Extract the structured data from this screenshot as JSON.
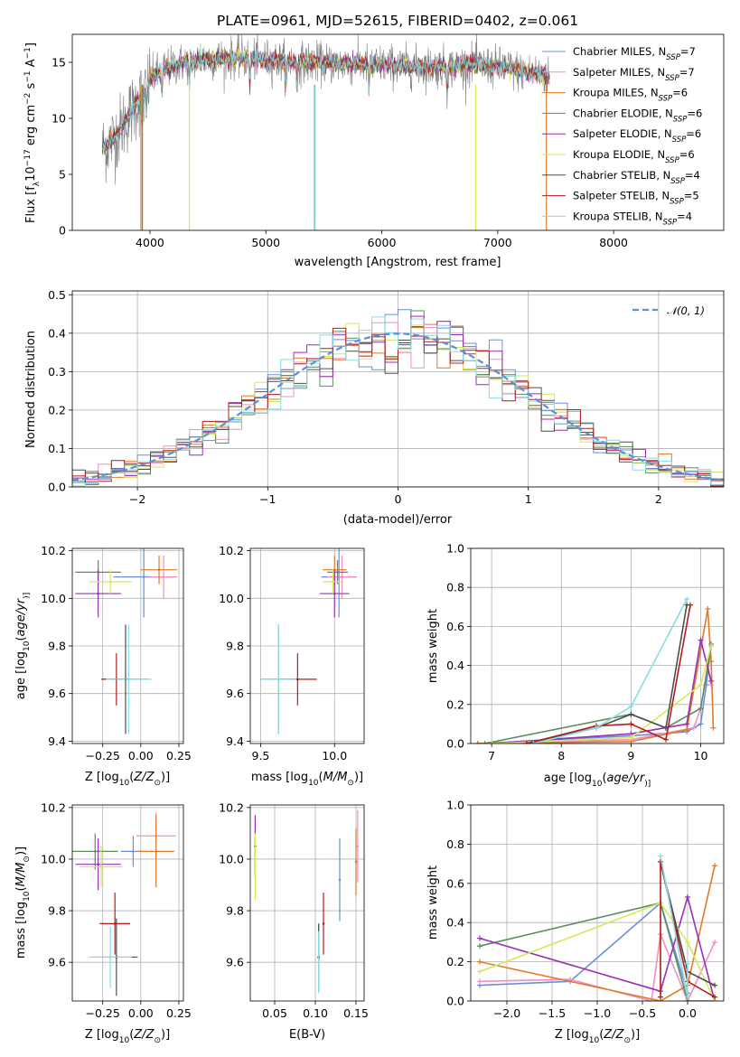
{
  "chart_data": [
    {
      "type": "line",
      "title": "PLATE=0961, MJD=52615, FIBERID=0402, z=0.061",
      "xlabel": "wavelength [Angstrom, rest frame]",
      "ylabel": "Flux [f$_\\lambda$10$^{-17}$ erg cm$^{-2}$ s$^{-1}$ A$^{-1}$]",
      "ylabel_parts": [
        "Flux [f",
        "λ",
        "10",
        "−17",
        " erg cm",
        "−2",
        " s",
        "−1",
        " A",
        "−1",
        "]"
      ],
      "xlim": [
        3330,
        8950
      ],
      "ylim": [
        0,
        17.5
      ],
      "xticks": [
        4000,
        5000,
        6000,
        7000,
        8000
      ],
      "xtick_labels": [
        "4000",
        "5000",
        "6000",
        "7000",
        "8000"
      ],
      "yticks": [
        0,
        5,
        10,
        15
      ],
      "ytick_labels": [
        "0",
        "5",
        "10",
        "15"
      ],
      "observed": {
        "color": "#7f7f7f",
        "x_range": [
          3590,
          7450
        ]
      },
      "spectrum_profile": {
        "x": [
          3590,
          3700,
          3800,
          3900,
          3950,
          4000,
          4100,
          4300,
          4500,
          4800,
          5000,
          5300,
          5600,
          6000,
          6300,
          6600,
          6800,
          7000,
          7200,
          7400,
          7450
        ],
        "y": [
          7.3,
          8.3,
          10.0,
          11.6,
          12.2,
          13.5,
          14.3,
          15.0,
          15.3,
          15.4,
          15.2,
          15.0,
          14.9,
          14.8,
          14.6,
          14.6,
          14.8,
          14.6,
          14.2,
          13.9,
          13.5
        ]
      },
      "legend_position": "upper right",
      "series": [
        {
          "name": "Chabrier MILES, N",
          "sub": "SSP",
          "suffix": "=7",
          "color": "#6a8fd8"
        },
        {
          "name": "Salpeter MILES, N",
          "sub": "SSP",
          "suffix": "=7",
          "color": "#f08fc6"
        },
        {
          "name": "Kroupa MILES, N",
          "sub": "SSP",
          "suffix": "=6",
          "color": "#e07b27"
        },
        {
          "name": "Chabrier ELODIE, N",
          "sub": "SSP",
          "suffix": "=6",
          "color": "#5f8c5f"
        },
        {
          "name": "Salpeter ELODIE, N",
          "sub": "SSP",
          "suffix": "=6",
          "color": "#9a2fb4"
        },
        {
          "name": "Kroupa ELODIE, N",
          "sub": "SSP",
          "suffix": "=6",
          "color": "#d6e85a"
        },
        {
          "name": "Chabrier STELIB, N",
          "sub": "SSP",
          "suffix": "=4",
          "color": "#4d4d4d"
        },
        {
          "name": "Salpeter STELIB, N",
          "sub": "SSP",
          "suffix": "=5",
          "color": "#b41c1c"
        },
        {
          "name": "Kroupa STELIB, N",
          "sub": "SSP",
          "suffix": "=4",
          "color": "#86dde3"
        }
      ]
    },
    {
      "type": "line",
      "xlabel": "(data-model)/error",
      "ylabel": "Normed distribution",
      "xlim": [
        -2.5,
        2.5
      ],
      "ylim": [
        0,
        0.51
      ],
      "xticks": [
        -2,
        -1,
        0,
        1,
        2
      ],
      "xtick_labels": [
        "−2",
        "−1",
        "0",
        "1",
        "2"
      ],
      "yticks": [
        0.0,
        0.1,
        0.2,
        0.3,
        0.4,
        0.5
      ],
      "ytick_labels": [
        "0.0",
        "0.1",
        "0.2",
        "0.3",
        "0.4",
        "0.5"
      ],
      "grid": true,
      "legend_position": "upper right",
      "reference_curve": {
        "name": "𝒩(0, 1)",
        "color": "#5b8fd6",
        "style": "dashed"
      },
      "histogram_bin_width": 0.1
    },
    {
      "type": "scatter",
      "xlabel": "Z [log10(Z/Z⊙)]",
      "xlabel_parts": [
        "Z [log",
        "10",
        "(",
        "Z/Z",
        "⊙",
        ")]"
      ],
      "ylabel": "age [log10(age/yr)]",
      "ylabel_parts": [
        "age  [log",
        "10",
        "(",
        "age/yr",
        ")]"
      ],
      "xlim": [
        -0.45,
        0.28
      ],
      "ylim": [
        9.39,
        10.21
      ],
      "xticks": [
        -0.25,
        0.0,
        0.25
      ],
      "xtick_labels": [
        "−0.25",
        "0.00",
        "0.25"
      ],
      "yticks": [
        9.4,
        9.6,
        9.8,
        10.0,
        10.2
      ],
      "ytick_labels": [
        "9.4",
        "9.6",
        "9.8",
        "10.0",
        "10.2"
      ],
      "grid": true,
      "points": [
        {
          "series": 0,
          "x": 0.02,
          "y": 10.09,
          "xerr": 0.2,
          "yerr": 0.17
        },
        {
          "series": 1,
          "x": 0.15,
          "y": 10.09,
          "xerr": 0.09,
          "yerr": 0.09
        },
        {
          "series": 2,
          "x": 0.12,
          "y": 10.12,
          "xerr": 0.12,
          "yerr": 0.06
        },
        {
          "series": 3,
          "x": -0.28,
          "y": 10.11,
          "xerr": 0.15,
          "yerr": 0.05
        },
        {
          "series": 4,
          "x": -0.28,
          "y": 10.02,
          "xerr": 0.15,
          "yerr": 0.1
        },
        {
          "series": 5,
          "x": -0.2,
          "y": 10.07,
          "xerr": 0.14,
          "yerr": 0.05
        },
        {
          "series": 6,
          "x": -0.1,
          "y": 9.66,
          "xerr": 0.15,
          "yerr": 0.23
        },
        {
          "series": 7,
          "x": -0.16,
          "y": 9.66,
          "xerr": 0.1,
          "yerr": 0.11
        },
        {
          "series": 8,
          "x": -0.08,
          "y": 9.66,
          "xerr": 0.15,
          "yerr": 0.23
        }
      ]
    },
    {
      "type": "scatter",
      "xlabel": "mass [log10(M/M⊙)]",
      "xlabel_parts": [
        "mass [log",
        "10",
        "(",
        "M/M",
        "⊙",
        ")]"
      ],
      "xlim": [
        9.43,
        10.2
      ],
      "ylim": [
        9.39,
        10.21
      ],
      "xticks": [
        9.5,
        10.0
      ],
      "xtick_labels": [
        "9.5",
        "10.0"
      ],
      "yticks": [
        9.4,
        9.6,
        9.8,
        10.0,
        10.2
      ],
      "ytick_labels": [
        "9.4",
        "9.6",
        "9.8",
        "10.0",
        "10.2"
      ],
      "grid": true,
      "points": [
        {
          "series": 0,
          "x": 10.03,
          "y": 10.09,
          "xerr": 0.12,
          "yerr": 0.17
        },
        {
          "series": 1,
          "x": 10.05,
          "y": 10.09,
          "xerr": 0.1,
          "yerr": 0.09
        },
        {
          "series": 2,
          "x": 10.0,
          "y": 10.12,
          "xerr": 0.08,
          "yerr": 0.06
        },
        {
          "series": 3,
          "x": 10.02,
          "y": 10.11,
          "xerr": 0.07,
          "yerr": 0.05
        },
        {
          "series": 4,
          "x": 10.0,
          "y": 10.02,
          "xerr": 0.1,
          "yerr": 0.1
        },
        {
          "series": 5,
          "x": 9.99,
          "y": 10.07,
          "xerr": 0.07,
          "yerr": 0.05
        },
        {
          "series": 6,
          "x": 9.62,
          "y": 9.66,
          "xerr": 0.12,
          "yerr": 0.23
        },
        {
          "series": 7,
          "x": 9.75,
          "y": 9.66,
          "xerr": 0.13,
          "yerr": 0.11
        },
        {
          "series": 8,
          "x": 9.62,
          "y": 9.66,
          "xerr": 0.12,
          "yerr": 0.23
        }
      ]
    },
    {
      "type": "line",
      "xlabel": "age [log10(age/yr)]",
      "xlabel_parts": [
        "age  [log",
        "10",
        "(",
        "age/yr",
        ")]"
      ],
      "ylabel": "mass weight",
      "xlim": [
        6.7,
        10.33
      ],
      "ylim": [
        0,
        1.0
      ],
      "xticks": [
        7,
        8,
        9,
        10
      ],
      "xtick_labels": [
        "7",
        "8",
        "9",
        "10"
      ],
      "yticks": [
        0.0,
        0.2,
        0.4,
        0.6,
        0.8,
        1.0
      ],
      "ytick_labels": [
        "0.0",
        "0.2",
        "0.4",
        "0.6",
        "0.8",
        "1.0"
      ],
      "grid": true,
      "series_data": [
        {
          "series": 0,
          "x": [
            6.8,
            9.0,
            9.8,
            10.0,
            10.08,
            10.15
          ],
          "y": [
            0.0,
            0.04,
            0.06,
            0.1,
            0.3,
            0.51
          ]
        },
        {
          "series": 1,
          "x": [
            6.8,
            9.0,
            9.9,
            10.0,
            10.1,
            10.15
          ],
          "y": [
            0.0,
            0.02,
            0.08,
            0.18,
            0.4,
            0.3
          ]
        },
        {
          "series": 2,
          "x": [
            6.8,
            9.0,
            9.8,
            10.1,
            10.15,
            10.18
          ],
          "y": [
            0.0,
            0.01,
            0.07,
            0.69,
            0.42,
            0.08
          ]
        },
        {
          "series": 3,
          "x": [
            6.9,
            9.0,
            9.5,
            10.0,
            10.15
          ],
          "y": [
            0.0,
            0.15,
            0.08,
            0.18,
            0.5
          ]
        },
        {
          "series": 4,
          "x": [
            7.0,
            9.0,
            9.8,
            10.0,
            10.15
          ],
          "y": [
            0.0,
            0.05,
            0.1,
            0.53,
            0.32
          ]
        },
        {
          "series": 5,
          "x": [
            7.0,
            9.0,
            10.0,
            10.15
          ],
          "y": [
            0.0,
            0.03,
            0.3,
            0.5
          ]
        },
        {
          "series": 6,
          "x": [
            7.5,
            8.5,
            9.0,
            9.5,
            9.8
          ],
          "y": [
            0.0,
            0.08,
            0.15,
            0.08,
            0.71
          ]
        },
        {
          "series": 7,
          "x": [
            7.5,
            8.5,
            9.0,
            9.5,
            9.85
          ],
          "y": [
            0.0,
            0.09,
            0.1,
            0.02,
            0.71
          ]
        },
        {
          "series": 8,
          "x": [
            7.6,
            8.5,
            9.0,
            9.8
          ],
          "y": [
            0.0,
            0.08,
            0.19,
            0.74
          ]
        }
      ]
    },
    {
      "type": "scatter",
      "xlabel": "Z [log10(Z/Z⊙)]",
      "xlabel_parts": [
        "Z [log",
        "10",
        "(",
        "Z/Z",
        "⊙",
        ")]"
      ],
      "ylabel": "mass [log10(M/M⊙)]",
      "ylabel_parts": [
        "mass [log",
        "10",
        "(",
        "M/M",
        "⊙",
        ")]"
      ],
      "xlim": [
        -0.45,
        0.28
      ],
      "ylim": [
        9.45,
        10.21
      ],
      "xticks": [
        -0.25,
        0.0,
        0.25
      ],
      "xtick_labels": [
        "−0.25",
        "0.00",
        "0.25"
      ],
      "yticks": [
        9.6,
        9.8,
        10.0,
        10.2
      ],
      "ytick_labels": [
        "9.6",
        "9.8",
        "10.0",
        "10.2"
      ],
      "grid": true,
      "points": [
        {
          "series": 0,
          "x": -0.05,
          "y": 10.03,
          "xerr": 0.08,
          "yerr": 0.06
        },
        {
          "series": 1,
          "x": 0.1,
          "y": 10.09,
          "xerr": 0.13,
          "yerr": 0.09
        },
        {
          "series": 2,
          "x": 0.1,
          "y": 10.03,
          "xerr": 0.12,
          "yerr": 0.14
        },
        {
          "series": 3,
          "x": -0.3,
          "y": 10.03,
          "xerr": 0.15,
          "yerr": 0.07
        },
        {
          "series": 4,
          "x": -0.28,
          "y": 9.98,
          "xerr": 0.15,
          "yerr": 0.1
        },
        {
          "series": 5,
          "x": -0.26,
          "y": 9.97,
          "xerr": 0.14,
          "yerr": 0.08
        },
        {
          "series": 6,
          "x": -0.16,
          "y": 9.62,
          "xerr": 0.14,
          "yerr": 0.15
        },
        {
          "series": 7,
          "x": -0.17,
          "y": 9.75,
          "xerr": 0.1,
          "yerr": 0.12
        },
        {
          "series": 8,
          "x": -0.2,
          "y": 9.62,
          "xerr": 0.14,
          "yerr": 0.12
        }
      ]
    },
    {
      "type": "scatter",
      "xlabel": "E(B-V)",
      "xlim": [
        0.02,
        0.16
      ],
      "ylim": [
        9.45,
        10.21
      ],
      "xticks": [
        0.05,
        0.1,
        0.15
      ],
      "xtick_labels": [
        "0.05",
        "0.10",
        "0.15"
      ],
      "yticks": [
        9.6,
        9.8,
        10.0,
        10.2
      ],
      "ytick_labels": [
        "9.6",
        "9.8",
        "10.0",
        "10.2"
      ],
      "grid": true,
      "points": [
        {
          "series": 0,
          "x": 0.13,
          "y": 9.92,
          "yerr": 0.16
        },
        {
          "series": 1,
          "x": 0.152,
          "y": 10.05,
          "yerr": 0.14
        },
        {
          "series": 2,
          "x": 0.15,
          "y": 9.99,
          "yerr": 0.13
        },
        {
          "series": 3,
          "x": 0.104,
          "y": 9.62,
          "yerr": 0.13
        },
        {
          "series": 4,
          "x": 0.026,
          "y": 10.05,
          "yerr": 0.12
        },
        {
          "series": 5,
          "x": 0.026,
          "y": 9.97,
          "yerr": 0.13
        },
        {
          "series": 6,
          "x": 0.104,
          "y": 9.62,
          "yerr": 0.13
        },
        {
          "series": 7,
          "x": 0.11,
          "y": 9.75,
          "yerr": 0.12
        },
        {
          "series": 8,
          "x": 0.104,
          "y": 9.6,
          "yerr": 0.12
        }
      ]
    },
    {
      "type": "line",
      "xlabel": "Z [log10(Z/Z⊙)]",
      "xlabel_parts": [
        "Z [log",
        "10",
        "(",
        "Z/Z",
        "⊙",
        ")]"
      ],
      "ylabel": "mass weight",
      "xlim": [
        -2.4,
        0.4
      ],
      "ylim": [
        0,
        1.0
      ],
      "xticks": [
        -2.0,
        -1.5,
        -1.0,
        -0.5,
        0.0
      ],
      "xtick_labels": [
        "−2.0",
        "−1.5",
        "−1.0",
        "−0.5",
        "0.0"
      ],
      "yticks": [
        0.0,
        0.2,
        0.4,
        0.6,
        0.8,
        1.0
      ],
      "ytick_labels": [
        "0.0",
        "0.2",
        "0.4",
        "0.6",
        "0.8",
        "1.0"
      ],
      "grid": true,
      "series_data": [
        {
          "series": 0,
          "x": [
            -2.3,
            -1.3,
            -0.3,
            0.0,
            0.0
          ],
          "y": [
            0.08,
            0.1,
            0.5,
            0.04,
            0.0
          ]
        },
        {
          "series": 1,
          "x": [
            -2.3,
            -1.3,
            -0.4,
            -0.3,
            0.0,
            0.3
          ],
          "y": [
            0.1,
            0.11,
            0.0,
            0.34,
            0.0,
            0.3
          ]
        },
        {
          "series": 2,
          "x": [
            -2.3,
            -0.3,
            0.0,
            0.3
          ],
          "y": [
            0.2,
            0.0,
            0.08,
            0.69
          ]
        },
        {
          "series": 3,
          "x": [
            -2.3,
            -0.3,
            0.0,
            0.3
          ],
          "y": [
            0.28,
            0.5,
            0.0,
            0.0
          ]
        },
        {
          "series": 4,
          "x": [
            -2.3,
            -0.3,
            0.0,
            0.3
          ],
          "y": [
            0.32,
            0.05,
            0.53,
            0.0
          ]
        },
        {
          "series": 5,
          "x": [
            -2.3,
            -0.3,
            0.0,
            0.3
          ],
          "y": [
            0.15,
            0.5,
            0.3,
            0.0
          ]
        },
        {
          "series": 6,
          "x": [
            -0.3,
            0.0,
            0.3
          ],
          "y": [
            0.71,
            0.15,
            0.08
          ]
        },
        {
          "series": 7,
          "x": [
            -0.3,
            -0.3,
            0.0,
            0.3
          ],
          "y": [
            0.02,
            0.71,
            0.1,
            0.02
          ]
        },
        {
          "series": 8,
          "x": [
            -0.3,
            0.0,
            0.0
          ],
          "y": [
            0.74,
            0.02,
            0.19
          ]
        }
      ]
    }
  ]
}
